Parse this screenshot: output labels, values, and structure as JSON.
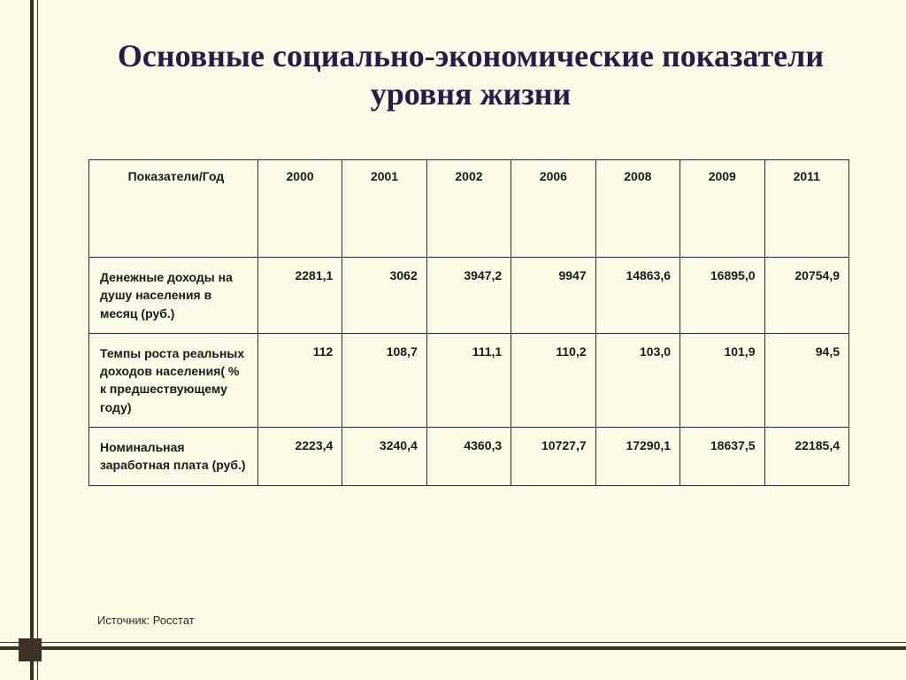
{
  "slide": {
    "background_color": "#fbfbe7",
    "accent_color": "#3d3127",
    "title_color": "#2b1a47",
    "title_font": "Times New Roman",
    "title_fontsize": 36,
    "title": "Основные социально-экономические показатели уровня жизни",
    "source_label": "Источник: Росстат"
  },
  "table": {
    "border_color": "#2b2b2b",
    "cell_fontsize": 14,
    "header_label": "Показатели/Год",
    "years": [
      "2000",
      "2001",
      "2002",
      "2006",
      "2008",
      "2009",
      "2011"
    ],
    "rows": [
      {
        "label": "Денежные доходы на душу населения в месяц (руб.)",
        "values": [
          "2281,1",
          "3062",
          "3947,2",
          "9947",
          "14863,6",
          "16895,0",
          "20754,9"
        ]
      },
      {
        "label": "Темпы роста реальных доходов населения( % к предшествующему году)",
        "values": [
          "112",
          "108,7",
          "111,1",
          "110,2",
          "103,0",
          "101,9",
          "94,5"
        ]
      },
      {
        "label": "Номинальная заработная плата (руб.)",
        "values": [
          "2223,4",
          "3240,4",
          "4360,3",
          "10727,7",
          "17290,1",
          "18637,5",
          "22185,4"
        ]
      }
    ]
  }
}
